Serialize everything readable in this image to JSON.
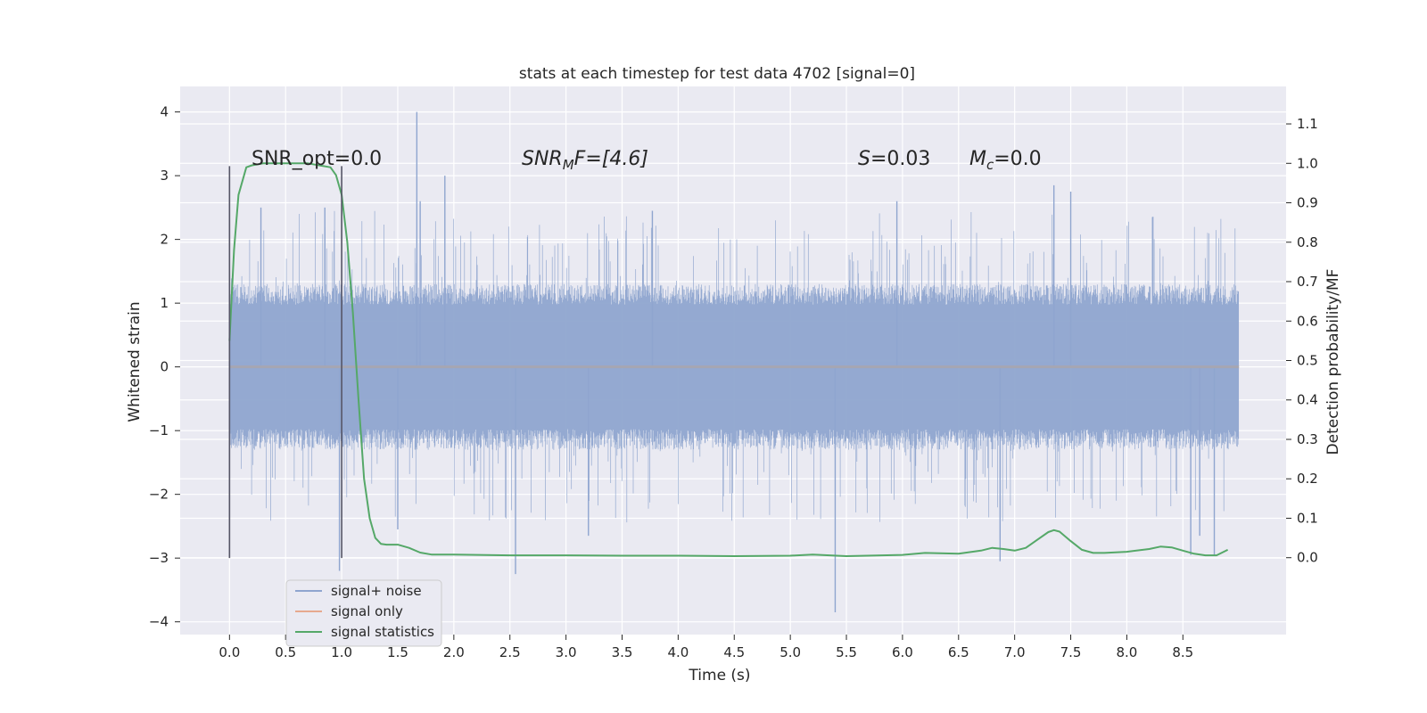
{
  "chart_data": {
    "type": "line",
    "title": "stats at each timestep for test data 4702 [signal=0]",
    "xlabel": "Time (s)",
    "ylabel": "Whitened strain",
    "ylabel_right": "Detection probability/MF",
    "xlim": [
      -0.44,
      9.42
    ],
    "ylim": [
      -4.2,
      4.4
    ],
    "ylim_right": [
      -0.195,
      1.195
    ],
    "xticks": [
      "0.0",
      "0.5",
      "1.0",
      "1.5",
      "2.0",
      "2.5",
      "3.0",
      "3.5",
      "4.0",
      "4.5",
      "5.0",
      "5.5",
      "6.0",
      "6.5",
      "7.0",
      "7.5",
      "8.0",
      "8.5"
    ],
    "yticks": [
      "4",
      "3",
      "2",
      "1",
      "0",
      "−1",
      "−2",
      "−3",
      "−4"
    ],
    "yticks_right": [
      "1.1",
      "1.0",
      "0.9",
      "0.8",
      "0.7",
      "0.6",
      "0.5",
      "0.4",
      "0.3",
      "0.2",
      "0.1",
      "0.0"
    ],
    "grid": true,
    "legend_position": "lower-left",
    "annotations": {
      "snr_opt": "SNR_opt=0.0",
      "snr_mf_base": "SNR",
      "snr_mf_sub": "M",
      "snr_mf_rest": "F=[4.6]",
      "s_label": "S",
      "s_value": "=0.03",
      "mc_base": "M",
      "mc_sub": "c",
      "mc_value": "=0.0"
    },
    "vertical_markers": [
      {
        "x": 0.0,
        "y_range": [
          -3.0,
          3.15
        ]
      },
      {
        "x": 1.0,
        "y_range": [
          -3.0,
          3.15
        ]
      }
    ],
    "series": [
      {
        "name": "signal+ noise",
        "color": "#8fa5cf",
        "note": "noise trace, 0 to 9.0 s, typical band ±1.3",
        "x_range": [
          0.0,
          9.0
        ],
        "band": [
          -1.3,
          1.3
        ],
        "peaks": [
          {
            "x": 1.67,
            "y": 4.0
          },
          {
            "x": 1.92,
            "y": 3.0
          },
          {
            "x": 1.7,
            "y": 2.6
          },
          {
            "x": 7.35,
            "y": 2.85
          },
          {
            "x": 5.95,
            "y": 2.6
          },
          {
            "x": 7.5,
            "y": 2.75
          },
          {
            "x": 0.28,
            "y": 2.5
          },
          {
            "x": 0.85,
            "y": 2.5
          },
          {
            "x": 3.77,
            "y": 2.45
          },
          {
            "x": 5.4,
            "y": -3.85
          },
          {
            "x": 2.55,
            "y": -3.25
          },
          {
            "x": 0.98,
            "y": -3.2
          },
          {
            "x": 6.87,
            "y": -3.05
          },
          {
            "x": 8.57,
            "y": -2.95
          },
          {
            "x": 8.78,
            "y": -2.95
          },
          {
            "x": 8.65,
            "y": -2.65
          },
          {
            "x": 3.2,
            "y": -2.65
          },
          {
            "x": 1.5,
            "y": -2.55
          }
        ]
      },
      {
        "name": "signal only",
        "color": "#e6a98e",
        "x": [
          0.0,
          9.0
        ],
        "y": [
          0.0,
          0.0
        ]
      },
      {
        "name": "signal statistics",
        "color": "#55a868",
        "axis": "right",
        "x": [
          0.0,
          0.04,
          0.08,
          0.15,
          0.2,
          0.3,
          0.4,
          0.5,
          0.6,
          0.7,
          0.8,
          0.9,
          0.95,
          1.0,
          1.05,
          1.1,
          1.15,
          1.2,
          1.25,
          1.3,
          1.35,
          1.4,
          1.5,
          1.6,
          1.7,
          1.8,
          2.0,
          2.5,
          3.0,
          3.5,
          4.0,
          4.5,
          5.0,
          5.2,
          5.5,
          6.0,
          6.2,
          6.5,
          6.7,
          6.8,
          6.9,
          7.0,
          7.1,
          7.2,
          7.3,
          7.35,
          7.4,
          7.5,
          7.6,
          7.7,
          7.8,
          8.0,
          8.2,
          8.3,
          8.4,
          8.5,
          8.6,
          8.7,
          8.8,
          8.9
        ],
        "y": [
          0.55,
          0.78,
          0.92,
          0.99,
          0.995,
          1.0,
          1.0,
          1.0,
          1.0,
          1.0,
          0.995,
          0.99,
          0.97,
          0.92,
          0.8,
          0.62,
          0.4,
          0.2,
          0.1,
          0.05,
          0.035,
          0.033,
          0.033,
          0.025,
          0.013,
          0.008,
          0.008,
          0.006,
          0.006,
          0.005,
          0.005,
          0.004,
          0.005,
          0.008,
          0.004,
          0.007,
          0.012,
          0.01,
          0.018,
          0.025,
          0.022,
          0.018,
          0.025,
          0.045,
          0.065,
          0.07,
          0.066,
          0.042,
          0.02,
          0.012,
          0.012,
          0.015,
          0.022,
          0.028,
          0.026,
          0.018,
          0.01,
          0.006,
          0.006,
          0.02
        ]
      }
    ]
  }
}
